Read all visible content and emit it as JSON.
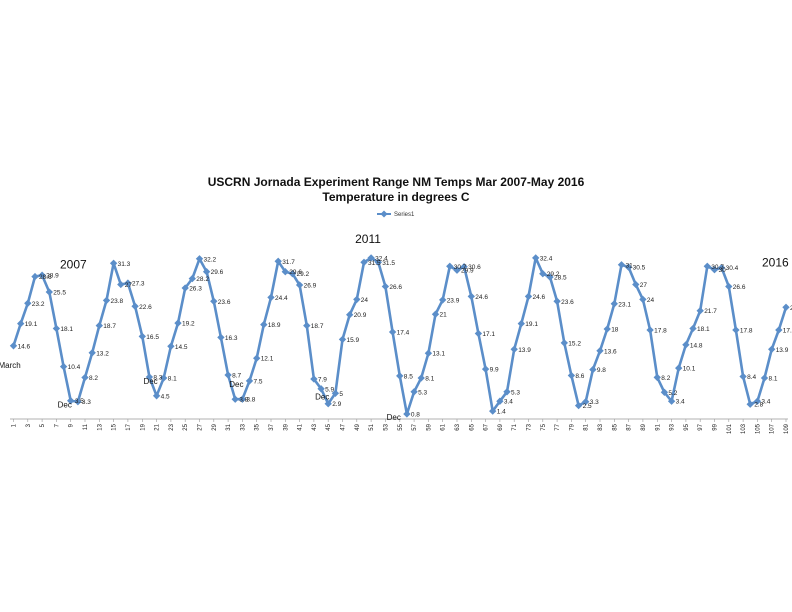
{
  "chart_data": {
    "type": "line",
    "title": "USCRN Jornada Experiment Range NM Temps Mar 2007-May 2016",
    "subtitle": "Temperature in degrees C",
    "xlabel": "",
    "ylabel": "",
    "legend": {
      "position": "top-center",
      "entries": [
        "Series1"
      ]
    },
    "grid": false,
    "ylim": [
      0,
      35
    ],
    "x_tick_labels": [
      "1",
      "3",
      "5",
      "7",
      "9",
      "11",
      "13",
      "15",
      "17",
      "19",
      "21",
      "23",
      "25",
      "27",
      "29",
      "31",
      "33",
      "35",
      "37",
      "39",
      "41",
      "43",
      "45",
      "47",
      "49",
      "51",
      "53",
      "55",
      "57",
      "59",
      "61",
      "63",
      "65",
      "67",
      "69",
      "71",
      "73",
      "75",
      "77",
      "79",
      "81",
      "83",
      "85",
      "87",
      "89",
      "91",
      "93",
      "95",
      "97",
      "99",
      "101",
      "103",
      "105",
      "107",
      "109",
      "111"
    ],
    "series": [
      {
        "name": "Series1",
        "color": "#5B8EC9",
        "values": [
          14.6,
          19.1,
          23.2,
          28.6,
          28.9,
          25.5,
          18.1,
          10.4,
          3.5,
          3.3,
          8.2,
          13.2,
          18.7,
          23.8,
          31.3,
          27,
          27.3,
          22.6,
          16.5,
          8.3,
          4.5,
          8.1,
          14.5,
          19.2,
          26.3,
          28.2,
          32.2,
          29.6,
          23.6,
          16.3,
          8.7,
          3.8,
          3.8,
          7.5,
          12.1,
          18.9,
          24.4,
          31.7,
          29.6,
          29.2,
          26.9,
          18.7,
          7.9,
          5.9,
          2.9,
          5,
          15.9,
          20.9,
          24,
          31.5,
          32.4,
          31.5,
          26.6,
          17.4,
          8.5,
          0.8,
          5.3,
          8.1,
          13.1,
          21,
          23.9,
          30.7,
          29.9,
          30.6,
          24.6,
          17.1,
          9.9,
          1.4,
          3.4,
          5.3,
          13.9,
          19.1,
          24.6,
          32.4,
          29.2,
          28.5,
          23.6,
          15.2,
          8.6,
          2.5,
          3.3,
          9.8,
          13.6,
          18,
          23.1,
          31,
          30.5,
          27,
          24,
          17.8,
          8.2,
          5.2,
          3.4,
          10.1,
          14.8,
          18.1,
          21.7,
          30.7,
          30,
          30.4,
          26.6,
          17.8,
          8.4,
          2.8,
          3.4,
          8.1,
          13.9,
          17.8,
          22.4
        ]
      }
    ],
    "annotations": [
      {
        "text": "2007",
        "point_index": 3
      },
      {
        "text": "2011",
        "point_index": 50
      },
      {
        "text": "2016",
        "point_index": 108
      },
      {
        "text": "March",
        "point_index": 0
      },
      {
        "text": "Dec",
        "point_index": 9
      },
      {
        "text": "Dec",
        "point_index": 21
      },
      {
        "text": "Dec",
        "point_index": 33
      },
      {
        "text": "Dec",
        "point_index": 45
      },
      {
        "text": "Dec",
        "point_index": 55
      }
    ]
  }
}
